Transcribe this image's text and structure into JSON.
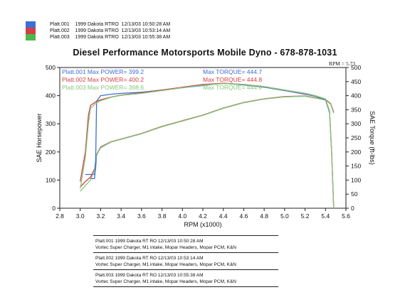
{
  "top_legend": [
    {
      "run": "Platt.001",
      "vehicle": "1999 Dakota RTRO",
      "date": "12/13/03",
      "time": "10:50:28 AM",
      "color": "#3c6fd6"
    },
    {
      "run": "Platt.002",
      "vehicle": "1999 Dakota RTRO",
      "date": "12/13/03",
      "time": "10:53:14 AM",
      "color": "#d23f44"
    },
    {
      "run": "Platt.003",
      "vehicle": "1999 Dakota RTRO",
      "date": "12/13/03",
      "time": "10:55:38 AM",
      "color": "#4cb84c"
    }
  ],
  "title": "Diesel Performance Motorsports Mobile Dyno -   678-878-1031",
  "rpm_readout": "RPM = 5.73",
  "bottom_legend": [
    {
      "line1": "Platt.001   1999 Dakota RT     RO   12/13/03 10:50:28 AM",
      "line2": "Vortec Super Charger, M1 intake, Mopar Headers, Mopar PCM, K&N"
    },
    {
      "line1": "Platt.002   1999 Dakota RT     RO   12/13/03 10:53:14 AM",
      "line2": "Vortec Super Charger, M1 intake, Mopar Headers, Mopar PCM, K&N"
    },
    {
      "line1": "Platt.003   1999 Dakota RT     RO   12/13/03 10:55:38 AM",
      "line2": "Vortec Super Charger, M1 intake, Mopar Headers, Mopar PCM, K&N"
    }
  ],
  "chart_data": {
    "type": "line",
    "xlabel": "RPM (x1000)",
    "ylabel": "SAE Horsepower",
    "y2label": "SAE Torque (ft-lbs)",
    "xlim": [
      2.8,
      5.6
    ],
    "ylim": [
      0,
      500
    ],
    "x_ticks": [
      "2.8",
      "3.0",
      "3.2",
      "3.4",
      "3.6",
      "3.8",
      "4.0",
      "4.2",
      "4.4",
      "4.6",
      "4.8",
      "5.0",
      "5.2",
      "5.4",
      "5.6"
    ],
    "y_ticks": [
      "0",
      "100",
      "200",
      "300",
      "400",
      "500"
    ],
    "y2_ticks": [
      "0",
      "50",
      "100",
      "150",
      "200",
      "250",
      "300",
      "350",
      "400",
      "450",
      "500"
    ],
    "annotations": [
      {
        "text": "Platt.001 Max POWER= 399.2",
        "color": "#3c6fd6"
      },
      {
        "text": "Platt.002 Max POWER= 400.2",
        "color": "#d23f44"
      },
      {
        "text": "Platt.003 Max POWER= 398.6",
        "color": "#86c878"
      },
      {
        "text": "Max TORQUE= 444.7",
        "color": "#3c6fd6"
      },
      {
        "text": "Max TORQUE= 444.8",
        "color": "#d23f44"
      },
      {
        "text": "Max TORQUE= 444.8",
        "color": "#86c878"
      }
    ],
    "series": [
      {
        "name": "Platt.001",
        "metric": "power",
        "color": "#3c6fd6",
        "x": [
          3.05,
          3.1,
          3.14,
          3.15,
          3.16,
          3.2,
          3.3,
          3.4,
          3.6,
          3.8,
          4.0,
          4.2,
          4.4,
          4.6,
          4.8,
          5.0,
          5.2,
          5.3,
          5.4,
          5.45,
          5.48
        ],
        "y": [
          120,
          120,
          120,
          140,
          190,
          215,
          235,
          245,
          265,
          290,
          310,
          330,
          355,
          375,
          388,
          396,
          398,
          392,
          385,
          370,
          340
        ]
      },
      {
        "name": "Platt.002",
        "metric": "power",
        "color": "#d23f44",
        "x": [
          3.0,
          3.05,
          3.1,
          3.14,
          3.16,
          3.2,
          3.3,
          3.4,
          3.6,
          3.8,
          4.0,
          4.2,
          4.4,
          4.6,
          4.8,
          5.0,
          5.2,
          5.3,
          5.4,
          5.45,
          5.48
        ],
        "y": [
          75,
          95,
          110,
          140,
          190,
          218,
          236,
          246,
          266,
          291,
          311,
          331,
          356,
          376,
          389,
          397,
          399,
          393,
          386,
          372,
          342
        ]
      },
      {
        "name": "Platt.003",
        "metric": "power",
        "color": "#86c878",
        "x": [
          3.0,
          3.05,
          3.1,
          3.14,
          3.16,
          3.2,
          3.3,
          3.4,
          3.6,
          3.8,
          4.0,
          4.2,
          4.4,
          4.6,
          4.8,
          5.0,
          5.2,
          5.3,
          5.4,
          5.45,
          5.48
        ],
        "y": [
          60,
          80,
          100,
          135,
          188,
          216,
          235,
          245,
          265,
          290,
          310,
          330,
          355,
          375,
          388,
          396,
          398,
          392,
          384,
          370,
          338
        ]
      },
      {
        "name": "Platt.001",
        "metric": "torque",
        "color": "#3c6fd6",
        "x": [
          3.1,
          3.14,
          3.15,
          3.16,
          3.2,
          3.3,
          3.4,
          3.6,
          3.8,
          4.0,
          4.2,
          4.4,
          4.6,
          4.8,
          5.0,
          5.2,
          5.3,
          5.4,
          5.44,
          5.46,
          5.48
        ],
        "y": [
          105,
          105,
          150,
          380,
          400,
          405,
          408,
          412,
          420,
          428,
          436,
          444,
          438,
          430,
          418,
          405,
          398,
          385,
          340,
          200,
          0
        ]
      },
      {
        "name": "Platt.002",
        "metric": "torque",
        "color": "#d23f44",
        "x": [
          3.0,
          3.05,
          3.08,
          3.1,
          3.15,
          3.2,
          3.3,
          3.4,
          3.6,
          3.8,
          4.0,
          4.2,
          4.4,
          4.6,
          4.8,
          5.0,
          5.2,
          5.3,
          5.4,
          5.44,
          5.46,
          5.48
        ],
        "y": [
          95,
          200,
          330,
          365,
          378,
          385,
          395,
          402,
          410,
          420,
          430,
          440,
          444,
          440,
          432,
          420,
          408,
          400,
          388,
          345,
          200,
          0
        ]
      },
      {
        "name": "Platt.003",
        "metric": "torque",
        "color": "#86c878",
        "x": [
          3.0,
          3.05,
          3.08,
          3.1,
          3.15,
          3.2,
          3.3,
          3.4,
          3.6,
          3.8,
          4.0,
          4.2,
          4.4,
          4.6,
          4.8,
          5.0,
          5.2,
          5.3,
          5.4,
          5.44,
          5.46,
          5.48
        ],
        "y": [
          70,
          180,
          300,
          355,
          372,
          382,
          394,
          401,
          408,
          418,
          428,
          438,
          443,
          440,
          432,
          420,
          408,
          400,
          388,
          345,
          200,
          0
        ]
      }
    ]
  }
}
